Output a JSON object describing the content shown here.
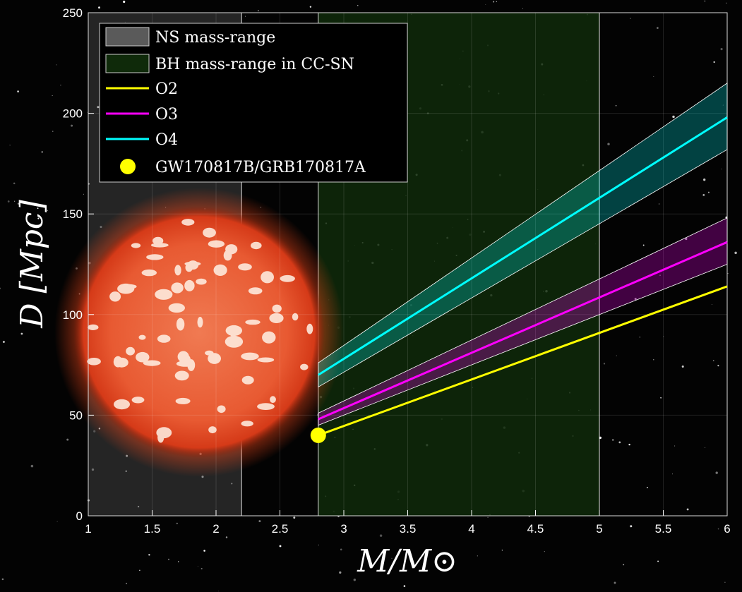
{
  "chart_data": {
    "type": "line",
    "xlabel": "M/M⊙",
    "ylabel": "D [Mpc]",
    "xlim": [
      1,
      6
    ],
    "ylim": [
      0,
      250
    ],
    "x_ticks": [
      1,
      1.5,
      2,
      2.5,
      3,
      3.5,
      4,
      4.5,
      5,
      5.5,
      6
    ],
    "x_tick_labels": [
      "1",
      "1.5",
      "2",
      "2.5",
      "3",
      "3.5",
      "4",
      "4.5",
      "5",
      "5.5",
      "6"
    ],
    "y_ticks": [
      0,
      50,
      100,
      150,
      200,
      250
    ],
    "y_tick_labels": [
      "0",
      "50",
      "100",
      "150",
      "200",
      "250"
    ],
    "grid": true,
    "legend_position": "top-left",
    "regions": [
      {
        "name": "NS mass-range",
        "x_range": [
          1,
          2.2
        ],
        "color": "#5a5a5a"
      },
      {
        "name": "BH mass-range in CC-SN",
        "x_range": [
          2.8,
          5
        ],
        "color": "#0f2a0a"
      }
    ],
    "series": [
      {
        "name": "O2",
        "color": "#ffff00",
        "x": [
          2.8,
          6
        ],
        "y": [
          40,
          114
        ]
      },
      {
        "name": "O3",
        "color": "#ff00ff",
        "x": [
          2.8,
          6
        ],
        "y": [
          48,
          136
        ],
        "band_lower": [
          45,
          125
        ],
        "band_upper": [
          51,
          148
        ]
      },
      {
        "name": "O4",
        "color": "#00ffff",
        "x": [
          2.8,
          6
        ],
        "y": [
          70,
          198
        ],
        "band_lower": [
          64,
          182
        ],
        "band_upper": [
          76,
          215
        ]
      }
    ],
    "points": [
      {
        "name": "GW170817B/GRB170817A",
        "x": 2.8,
        "y": 40,
        "color": "#ffff00"
      }
    ]
  }
}
